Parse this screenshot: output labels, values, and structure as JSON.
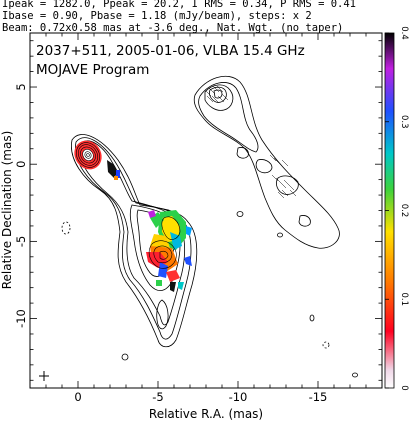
{
  "header": {
    "line1": "Ipeak = 1282.0, Ppeak = 20.2, I RMS = 0.34, P RMS = 0.41",
    "line2": "Ibase = 0.90, Pbase = 1.18 (mJy/beam), steps: x 2",
    "line3": "Beam: 0.72x0.58 mas at -3.6 deg., Nat. Wgt. (no taper)"
  },
  "map": {
    "title": "2037+511, 2005-01-06, VLBA 15.4 GHz",
    "program": "MOJAVE Program"
  },
  "chart_data": {
    "type": "contour-map",
    "xlabel": "Relative R.A. (mas)",
    "ylabel": "Relative Declination (mas)",
    "xlim": [
      3,
      -19
    ],
    "ylim": [
      -14.5,
      8.5
    ],
    "x_ticks": [
      0,
      -5,
      -10,
      -15
    ],
    "x_tick_labels": [
      "0",
      "-5",
      "-10",
      "-15"
    ],
    "y_ticks": [
      5,
      0,
      -5,
      -10
    ],
    "y_tick_labels": [
      "5",
      "0",
      "-5",
      "-10"
    ],
    "colorbar": {
      "range": [
        0,
        0.4
      ],
      "ticks": [
        0,
        0.1,
        0.2,
        0.3,
        0.4
      ],
      "tick_labels": [
        "0",
        "0.1",
        "0.2",
        "0.3",
        "0.4"
      ]
    },
    "beam": {
      "major_mas": 0.72,
      "minor_mas": 0.58,
      "pa_deg": -3.6
    }
  }
}
